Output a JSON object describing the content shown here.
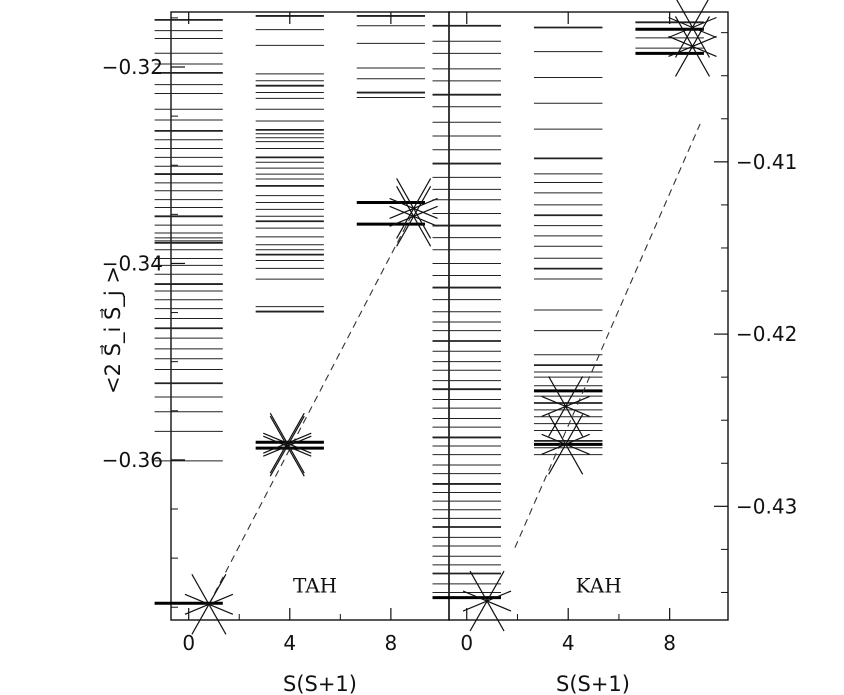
{
  "figure": {
    "ylabel_left": "<2 S⃗_i S⃗_j >",
    "xlabel": "S(S+1)"
  },
  "chart_data": [
    {
      "type": "scatter",
      "panel_label": "TAH",
      "xlabel": "S(S+1)",
      "ylabel": "<2 S⃗_i S⃗_j >",
      "xlim": [
        -0.7,
        10.3
      ],
      "ylim": [
        -0.3763,
        -0.3144
      ],
      "xticks": [
        0,
        4,
        8
      ],
      "yticks": [
        -0.32,
        -0.34,
        -0.36
      ],
      "yaxis_side": "left",
      "x_tick_labels": [
        "0",
        "4",
        "8"
      ],
      "y_tick_labels": [
        "−0.32",
        "−0.34",
        "−0.36"
      ],
      "levels": [
        {
          "x_center": 0,
          "values": [
            -0.3152,
            -0.3163,
            -0.3171,
            -0.3186,
            -0.3197,
            -0.3206,
            -0.3218,
            -0.3227,
            -0.3243,
            -0.3254,
            -0.3265,
            -0.3274,
            -0.3283,
            -0.3292,
            -0.3301,
            -0.3309,
            -0.3318,
            -0.3326,
            -0.3335,
            -0.3343,
            -0.3352,
            -0.3361,
            -0.3369,
            -0.3374,
            -0.3377,
            -0.3379,
            -0.3386,
            -0.3395,
            -0.3402,
            -0.3411,
            -0.3421,
            -0.3428,
            -0.3437,
            -0.3446,
            -0.3456,
            -0.3466,
            -0.3476,
            -0.3487,
            -0.3497,
            -0.3508,
            -0.3522,
            -0.3536,
            -0.3551,
            -0.3571,
            -0.3601
          ]
        },
        {
          "x_center": 4,
          "values": [
            -0.3148,
            -0.3162,
            -0.3178,
            -0.3207,
            -0.3214,
            -0.3219,
            -0.3226,
            -0.3232,
            -0.3243,
            -0.3255,
            -0.3264,
            -0.3268,
            -0.3272,
            -0.3276,
            -0.3283,
            -0.3292,
            -0.3297,
            -0.3303,
            -0.3309,
            -0.3314,
            -0.3321,
            -0.3331,
            -0.3338,
            -0.3345,
            -0.3352,
            -0.3357,
            -0.3364,
            -0.3373,
            -0.3381,
            -0.3386,
            -0.3391,
            -0.3397,
            -0.3405,
            -0.3416,
            -0.3444,
            -0.3449
          ]
        },
        {
          "x_center": 8,
          "values": [
            -0.3148,
            -0.3158,
            -0.3176,
            -0.3201,
            -0.3212,
            -0.3226,
            -0.3231
          ]
        }
      ],
      "markers": [
        {
          "x": 0.8,
          "y": -0.3747,
          "label": "x"
        },
        {
          "x": 3.9,
          "y": -0.3586,
          "label": "x"
        },
        {
          "x": 3.9,
          "y": -0.3583,
          "label": "x"
        },
        {
          "x": 8.9,
          "y": -0.3352,
          "label": "x"
        },
        {
          "x": 8.9,
          "y": -0.3344,
          "label": "x"
        }
      ],
      "fit_line": {
        "x": [
          0.8,
          8.9
        ],
        "y": [
          -0.3747,
          -0.3347
        ],
        "style": "dashed"
      },
      "thick_levels": [
        {
          "x_center": 0,
          "y": -0.3746
        },
        {
          "x_center": 4,
          "y": -0.3582
        },
        {
          "x_center": 4,
          "y": -0.3588
        },
        {
          "x_center": 8,
          "y": -0.3338
        },
        {
          "x_center": 8,
          "y": -0.336
        }
      ],
      "grid": false
    },
    {
      "type": "scatter",
      "panel_label": "KAH",
      "xlabel": "S(S+1)",
      "ylabel": "",
      "xlim": [
        -0.7,
        10.3
      ],
      "ylim": [
        -0.4366,
        -0.4013
      ],
      "xticks": [
        0,
        4,
        8
      ],
      "yticks": [
        -0.41,
        -0.42,
        -0.43
      ],
      "yaxis_side": "right",
      "x_tick_labels": [
        "0",
        "4",
        "8"
      ],
      "y_tick_labels": [
        "−0.41",
        "−0.42",
        "−0.43"
      ],
      "levels": [
        {
          "x_center": 0,
          "values": [
            -0.4021,
            -0.403,
            -0.4037,
            -0.4046,
            -0.4053,
            -0.4061,
            -0.4068,
            -0.4077,
            -0.4085,
            -0.4093,
            -0.4101,
            -0.4109,
            -0.4116,
            -0.4122,
            -0.413,
            -0.4137,
            -0.4144,
            -0.4151,
            -0.4159,
            -0.4166,
            -0.4173,
            -0.418,
            -0.4187,
            -0.4193,
            -0.4198,
            -0.4204,
            -0.421,
            -0.4216,
            -0.4221,
            -0.4227,
            -0.4232,
            -0.4238,
            -0.4243,
            -0.4249,
            -0.4254,
            -0.426,
            -0.4265,
            -0.427,
            -0.4276,
            -0.4281,
            -0.4287,
            -0.4292,
            -0.4297,
            -0.4302,
            -0.4307,
            -0.4312,
            -0.4318,
            -0.4323,
            -0.4329,
            -0.4334,
            -0.4339,
            -0.4345,
            -0.435
          ]
        },
        {
          "x_center": 4,
          "values": [
            -0.4022,
            -0.4036,
            -0.4051,
            -0.4066,
            -0.4081,
            -0.4098,
            -0.4107,
            -0.4112,
            -0.4118,
            -0.4125,
            -0.4131,
            -0.4137,
            -0.4143,
            -0.4149,
            -0.4156,
            -0.4162,
            -0.4168,
            -0.4186,
            -0.4198,
            -0.4212,
            -0.4218,
            -0.4222,
            -0.4225,
            -0.423,
            -0.4236,
            -0.424,
            -0.4244,
            -0.4248,
            -0.4252,
            -0.4256,
            -0.4262,
            -0.4266,
            -0.427
          ]
        },
        {
          "x_center": 8,
          "values": [
            -0.4019,
            -0.4028,
            -0.4034
          ]
        }
      ],
      "markers": [
        {
          "x": 0.8,
          "y": -0.4355,
          "label": "x"
        },
        {
          "x": 3.9,
          "y": -0.4264,
          "label": "x"
        },
        {
          "x": 3.9,
          "y": -0.4242,
          "label": "x"
        },
        {
          "x": 8.9,
          "y": -0.4033,
          "label": "x"
        },
        {
          "x": 8.9,
          "y": -0.4022,
          "label": "x"
        }
      ],
      "fit_line": {
        "x": [
          1.9,
          9.2
        ],
        "y": [
          -0.4324,
          -0.4078
        ],
        "style": "dashed"
      },
      "thick_levels": [
        {
          "x_center": 0,
          "y": -0.4353
        },
        {
          "x_center": 4,
          "y": -0.4233
        },
        {
          "x_center": 4,
          "y": -0.4264
        },
        {
          "x_center": 8,
          "y": -0.4023
        },
        {
          "x_center": 8,
          "y": -0.4037
        }
      ],
      "grid": false
    }
  ]
}
